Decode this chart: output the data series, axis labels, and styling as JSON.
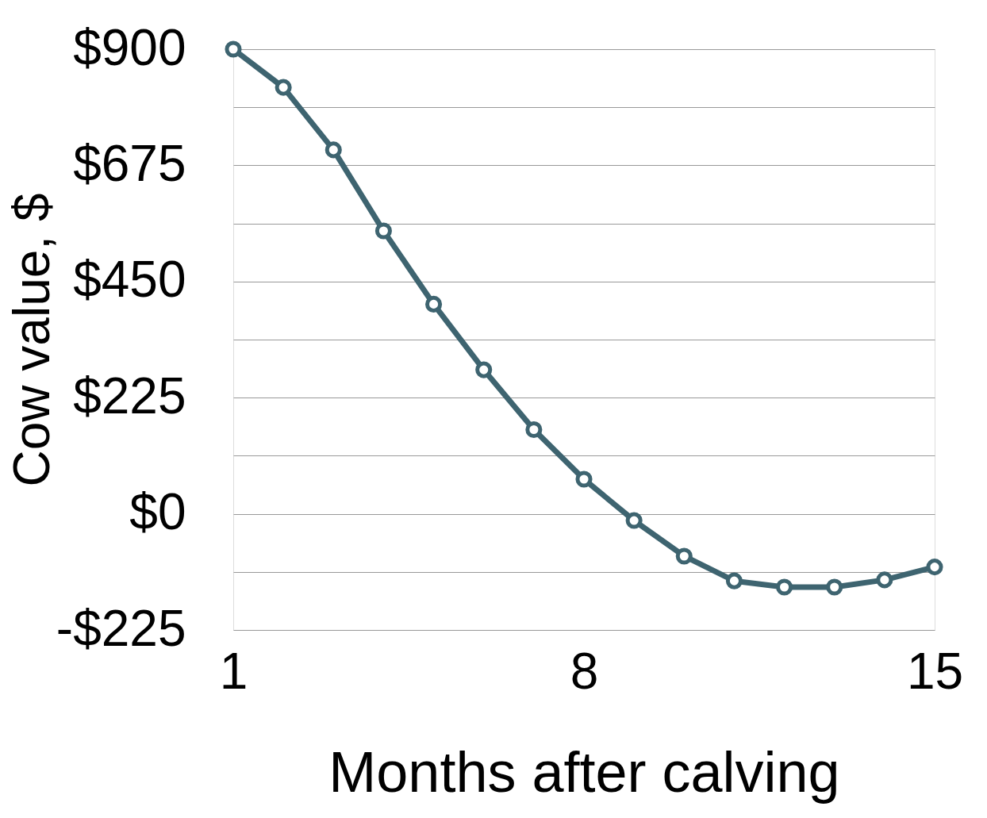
{
  "chart_data": {
    "type": "line",
    "xlabel": "Months after calving",
    "ylabel": "Cow value, $",
    "x": [
      1,
      2,
      3,
      4,
      5,
      6,
      7,
      8,
      9,
      10,
      11,
      12,
      13,
      14,
      15
    ],
    "series": [
      {
        "color": "#3e6470",
        "values": [
          900,
          826,
          705,
          548,
          406,
          279,
          163,
          67,
          -13,
          -82,
          -130,
          -142,
          -142,
          -128,
          -103
        ]
      }
    ],
    "xlim": [
      1,
      15
    ],
    "xticks": [
      1,
      8,
      15
    ],
    "ylim": [
      -225,
      900
    ],
    "yticks": [
      {
        "value": -225,
        "label": "-$225"
      },
      {
        "value": -112.5,
        "label": null
      },
      {
        "value": 0,
        "label": "$0"
      },
      {
        "value": 112.5,
        "label": null
      },
      {
        "value": 225,
        "label": "$225"
      },
      {
        "value": 337.5,
        "label": null
      },
      {
        "value": 450,
        "label": "$450"
      },
      {
        "value": 562.5,
        "label": null
      },
      {
        "value": 675,
        "label": "$675"
      },
      {
        "value": 787.5,
        "label": null
      },
      {
        "value": 900,
        "label": "$900"
      }
    ],
    "grid": "y",
    "marker": "circle",
    "line_style": "solid",
    "legend": false
  }
}
